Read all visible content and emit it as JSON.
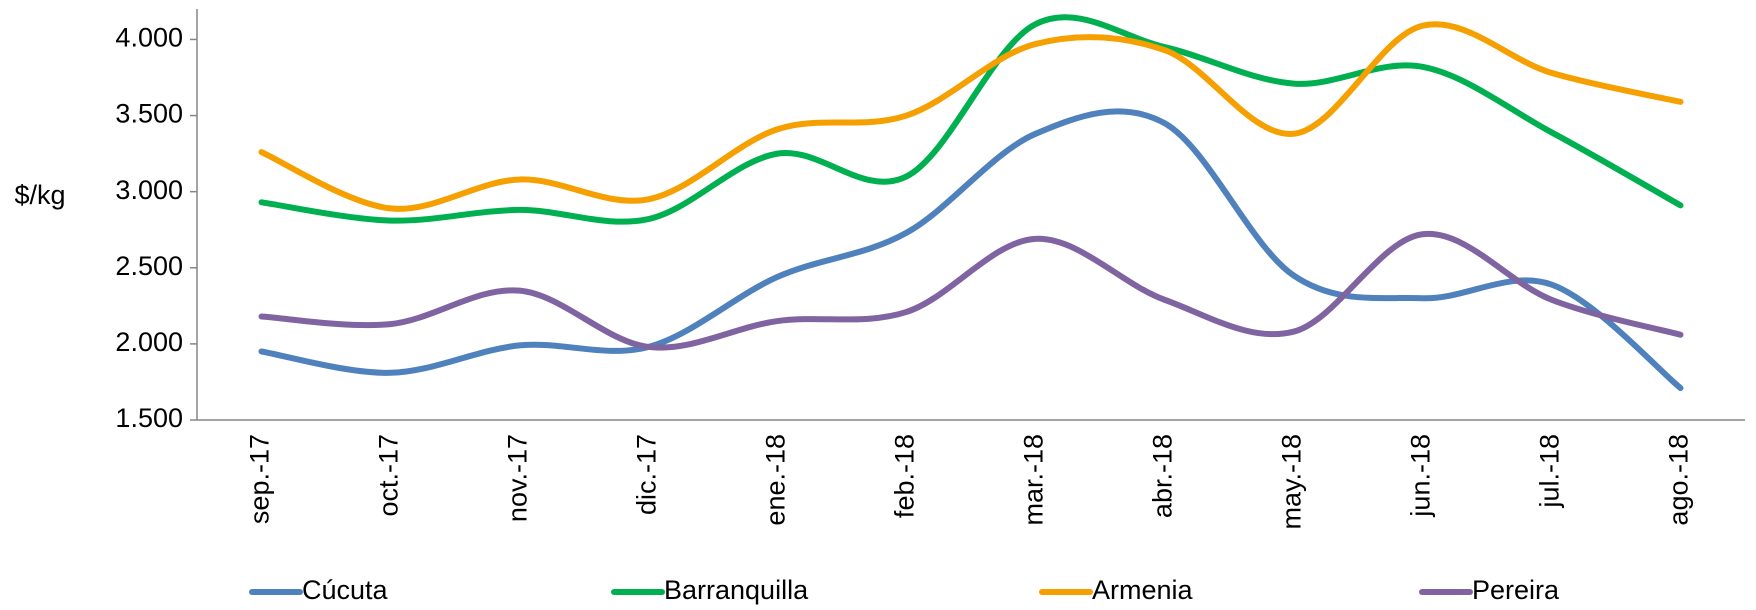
{
  "chart_data": {
    "type": "line",
    "y_label": "$/kg",
    "categories": [
      "sep.-17",
      "oct.-17",
      "nov.-17",
      "dic.-17",
      "ene.-18",
      "feb.-18",
      "mar.-18",
      "abr.-18",
      "may.-18",
      "jun.-18",
      "jul.-18",
      "ago.-18"
    ],
    "series": [
      {
        "name": "Cúcuta",
        "color": "#4f81bd",
        "values": [
          1950,
          1810,
          1990,
          1980,
          2440,
          2730,
          3380,
          3450,
          2450,
          2300,
          2390,
          1710
        ]
      },
      {
        "name": "Barranquilla",
        "color": "#00b050",
        "values": [
          2930,
          2810,
          2880,
          2820,
          3250,
          3100,
          4100,
          3950,
          3710,
          3820,
          3390,
          2910
        ]
      },
      {
        "name": "Armenia",
        "color": "#f5a000",
        "values": [
          3260,
          2890,
          3080,
          2950,
          3410,
          3500,
          3970,
          3930,
          3380,
          4090,
          3780,
          3590
        ]
      },
      {
        "name": "Pereira",
        "color": "#8064a2",
        "values": [
          2180,
          2130,
          2350,
          1980,
          2150,
          2210,
          2690,
          2290,
          2080,
          2720,
          2290,
          2060
        ]
      }
    ],
    "ylim": [
      1500,
      4200
    ],
    "yticks": [
      {
        "value": 1500,
        "label": "1.500"
      },
      {
        "value": 2000,
        "label": "2.000"
      },
      {
        "value": 2500,
        "label": "2.500"
      },
      {
        "value": 3000,
        "label": "3.000"
      },
      {
        "value": 3500,
        "label": "3.500"
      },
      {
        "value": 4000,
        "label": "4.000"
      }
    ]
  }
}
